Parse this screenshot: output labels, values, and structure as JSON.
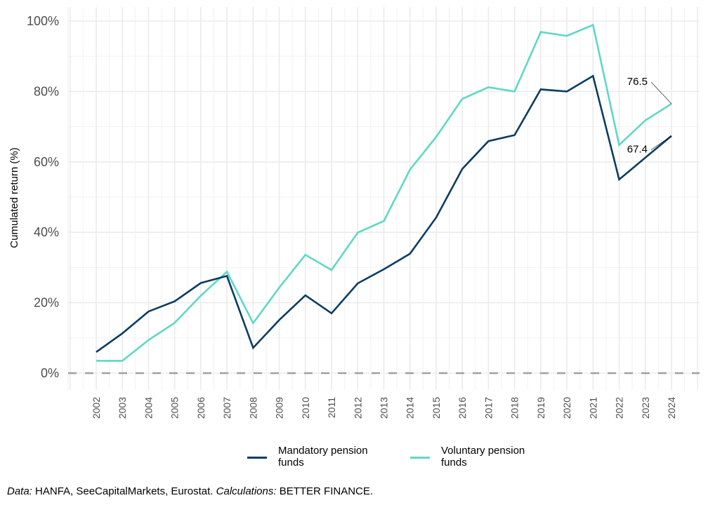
{
  "chart_data": {
    "type": "line",
    "title": "",
    "xlabel": "",
    "ylabel": "Cumulated return  (%)",
    "x": [
      2002,
      2003,
      2004,
      2005,
      2006,
      2007,
      2008,
      2009,
      2010,
      2011,
      2012,
      2013,
      2014,
      2015,
      2016,
      2017,
      2018,
      2019,
      2020,
      2021,
      2022,
      2023,
      2024
    ],
    "x_tick_labels": [
      "2002",
      "2003",
      "2004",
      "2005",
      "2006",
      "2007",
      "2008",
      "2009",
      "2010",
      "2011",
      "2012",
      "2013",
      "2014",
      "2015",
      "2016",
      "2017",
      "2018",
      "2019",
      "2020",
      "2021",
      "2022",
      "2023",
      "2024"
    ],
    "y_ticks": [
      0,
      20,
      40,
      60,
      80,
      100
    ],
    "y_tick_labels": [
      "0%",
      "20%",
      "40%",
      "60%",
      "80%",
      "100%"
    ],
    "ylim": [
      -4,
      104
    ],
    "xlim": [
      2000.5,
      2025.1
    ],
    "grid": true,
    "reference_line": {
      "y": 0,
      "style": "dashed",
      "color": "#a0a0a0"
    },
    "legend_position": "bottom",
    "series": [
      {
        "name": "Mandatory pension funds",
        "color": "#0b3d62",
        "values": [
          6.0,
          11.3,
          17.5,
          20.4,
          25.6,
          27.6,
          7.2,
          15.1,
          22.1,
          17.0,
          25.5,
          29.5,
          33.9,
          44.2,
          58.0,
          65.9,
          67.6,
          80.6,
          80.0,
          84.4,
          55.0,
          61.2,
          67.4
        ]
      },
      {
        "name": "Voluntary pension funds",
        "color": "#5fd8c6",
        "values": [
          3.5,
          3.5,
          9.4,
          14.3,
          22.0,
          28.8,
          14.2,
          24.3,
          33.6,
          29.3,
          39.9,
          43.2,
          57.8,
          67.1,
          77.9,
          81.2,
          80.0,
          96.9,
          95.8,
          98.9,
          64.8,
          71.8,
          76.5
        ]
      }
    ],
    "annotations": [
      {
        "text": "76.5",
        "x": 2024,
        "y": 76.5,
        "series": "Voluntary pension funds"
      },
      {
        "text": "67.4",
        "x": 2024,
        "y": 67.4,
        "series": "Mandatory pension funds"
      }
    ]
  },
  "legend": {
    "items": [
      {
        "line1": "Mandatory pension",
        "line2": "funds",
        "color": "#0b3d62"
      },
      {
        "line1": "Voluntary pension",
        "line2": "funds",
        "color": "#5fd8c6"
      }
    ]
  },
  "caption": {
    "data_label": "Data:",
    "data_sources": " HANFA, SeeCapitalMarkets, Eurostat. ",
    "calc_label": "Calculations:",
    "calc_source": " BETTER FINANCE."
  }
}
